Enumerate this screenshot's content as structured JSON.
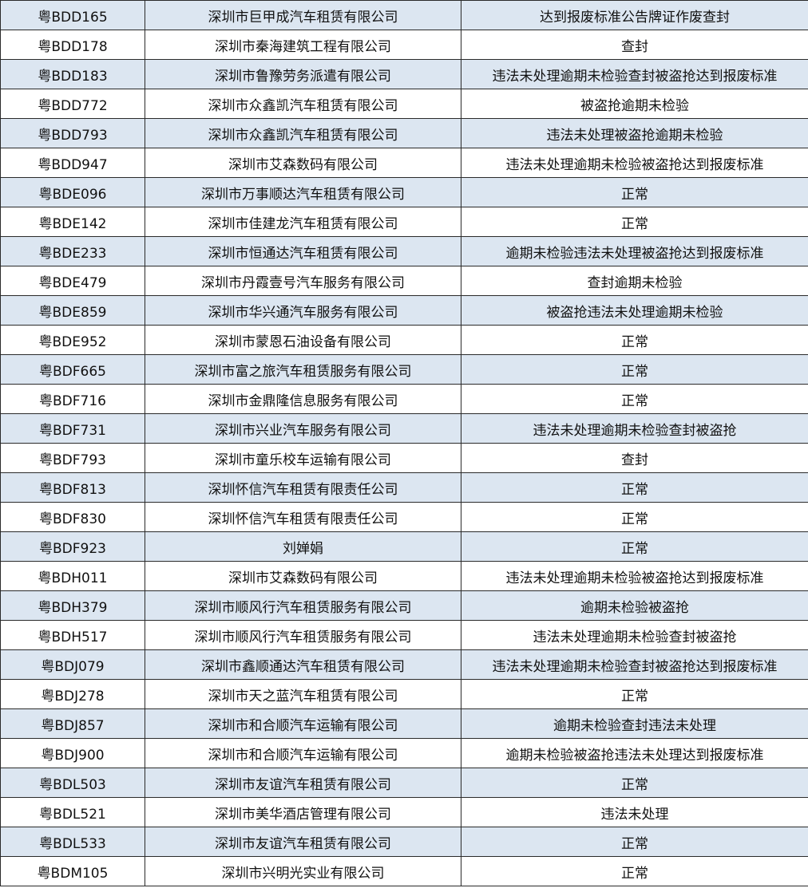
{
  "table": {
    "rows": [
      [
        "粤BDD165",
        "深圳市巨甲成汽车租赁有限公司",
        "达到报废标准公告牌证作废查封"
      ],
      [
        "粤BDD178",
        "深圳市秦海建筑工程有限公司",
        "查封"
      ],
      [
        "粤BDD183",
        "深圳市鲁豫劳务派遣有限公司",
        "违法未处理逾期未检验查封被盗抢达到报废标准"
      ],
      [
        "粤BDD772",
        "深圳市众鑫凯汽车租赁有限公司",
        "被盗抢逾期未检验"
      ],
      [
        "粤BDD793",
        "深圳市众鑫凯汽车租赁有限公司",
        "违法未处理被盗抢逾期未检验"
      ],
      [
        "粤BDD947",
        "深圳市艾森数码有限公司",
        "违法未处理逾期未检验被盗抢达到报废标准"
      ],
      [
        "粤BDE096",
        "深圳市万事顺达汽车租赁有限公司",
        "正常"
      ],
      [
        "粤BDE142",
        "深圳市佳建龙汽车租赁有限公司",
        "正常"
      ],
      [
        "粤BDE233",
        "深圳市恒通达汽车租赁有限公司",
        "逾期未检验违法未处理被盗抢达到报废标准"
      ],
      [
        "粤BDE479",
        "深圳市丹霞壹号汽车服务有限公司",
        "查封逾期未检验"
      ],
      [
        "粤BDE859",
        "深圳市华兴通汽车服务有限公司",
        "被盗抢违法未处理逾期未检验"
      ],
      [
        "粤BDE952",
        "深圳市蒙恩石油设备有限公司",
        "正常"
      ],
      [
        "粤BDF665",
        "深圳市富之旅汽车租赁服务有限公司",
        "正常"
      ],
      [
        "粤BDF716",
        "深圳市金鼎隆信息服务有限公司",
        "正常"
      ],
      [
        "粤BDF731",
        "深圳市兴业汽车服务有限公司",
        "违法未处理逾期未检验查封被盗抢"
      ],
      [
        "粤BDF793",
        "深圳市童乐校车运输有限公司",
        "查封"
      ],
      [
        "粤BDF813",
        "深圳怀信汽车租赁有限责任公司",
        "正常"
      ],
      [
        "粤BDF830",
        "深圳怀信汽车租赁有限责任公司",
        "正常"
      ],
      [
        "粤BDF923",
        "刘婵娟",
        "正常"
      ],
      [
        "粤BDH011",
        "深圳市艾森数码有限公司",
        "违法未处理逾期未检验被盗抢达到报废标准"
      ],
      [
        "粤BDH379",
        "深圳市顺风行汽车租赁服务有限公司",
        "逾期未检验被盗抢"
      ],
      [
        "粤BDH517",
        "深圳市顺风行汽车租赁服务有限公司",
        "违法未处理逾期未检验查封被盗抢"
      ],
      [
        "粤BDJ079",
        "深圳市鑫顺通达汽车租赁有限公司",
        "违法未处理逾期未检验查封被盗抢达到报废标准"
      ],
      [
        "粤BDJ278",
        "深圳市天之蓝汽车租赁有限公司",
        "正常"
      ],
      [
        "粤BDJ857",
        "深圳市和合顺汽车运输有限公司",
        "逾期未检验查封违法未处理"
      ],
      [
        "粤BDJ900",
        "深圳市和合顺汽车运输有限公司",
        "逾期未检验被盗抢违法未处理达到报废标准"
      ],
      [
        "粤BDL503",
        "深圳市友谊汽车租赁有限公司",
        "正常"
      ],
      [
        "粤BDL521",
        "深圳市美华酒店管理有限公司",
        "违法未处理"
      ],
      [
        "粤BDL533",
        "深圳市友谊汽车租赁有限公司",
        "正常"
      ],
      [
        "粤BDM105",
        "深圳市兴明光实业有限公司",
        "正常"
      ]
    ]
  },
  "colors": {
    "stripe": "#dce6f1",
    "border": "#2a2a2a"
  }
}
